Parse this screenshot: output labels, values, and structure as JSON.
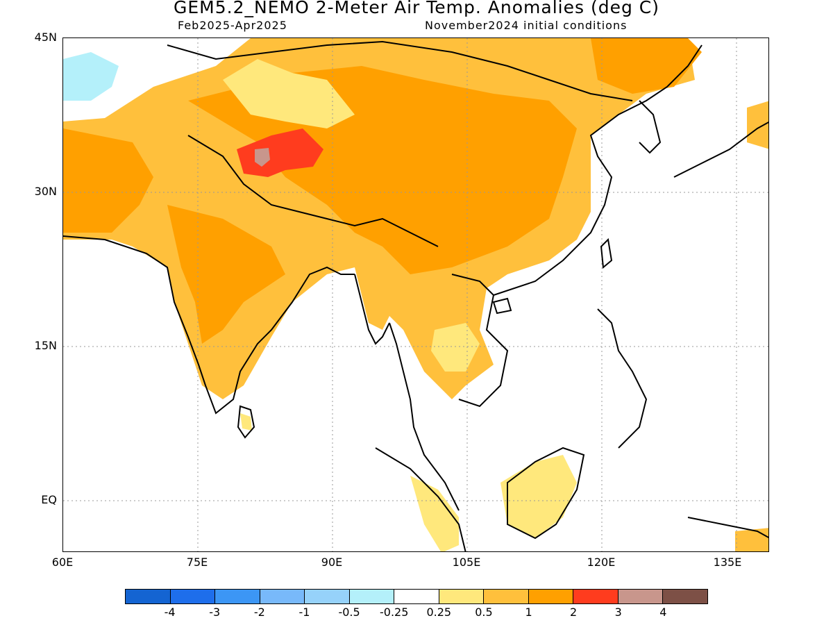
{
  "header": {
    "title": "GEM5.2_NEMO 2-Meter Air Temp. Anomalies (deg C)",
    "period": "Feb2025-Apr2025",
    "init": "November2024 initial conditions"
  },
  "axes": {
    "lat_labels": [
      "45N",
      "30N",
      "15N",
      "EQ"
    ],
    "lon_labels": [
      "60E",
      "75E",
      "90E",
      "105E",
      "120E",
      "135E"
    ]
  },
  "colorbar": {
    "colors": [
      "#1464d2",
      "#1e6eeb",
      "#3c96f5",
      "#78b9fa",
      "#96d2fa",
      "#b4f0fa",
      "#ffffff",
      "#ffe87c",
      "#ffc03c",
      "#ffa000",
      "#ff3c1e",
      "#c8968c",
      "#7d5046"
    ],
    "labels": [
      "-4",
      "-3",
      "-2",
      "-1",
      "-0.5",
      "-0.25",
      "0.25",
      "0.5",
      "1",
      "2",
      "3",
      "4"
    ]
  },
  "legend": {
    "anomaly_1_2": "#ffa000",
    "anomaly_05_1": "#ffc03c",
    "anomaly_025_05": "#ffe87c",
    "anomaly_2_3": "#ff3c1e",
    "anomaly_neg": "#b4f0fa"
  }
}
